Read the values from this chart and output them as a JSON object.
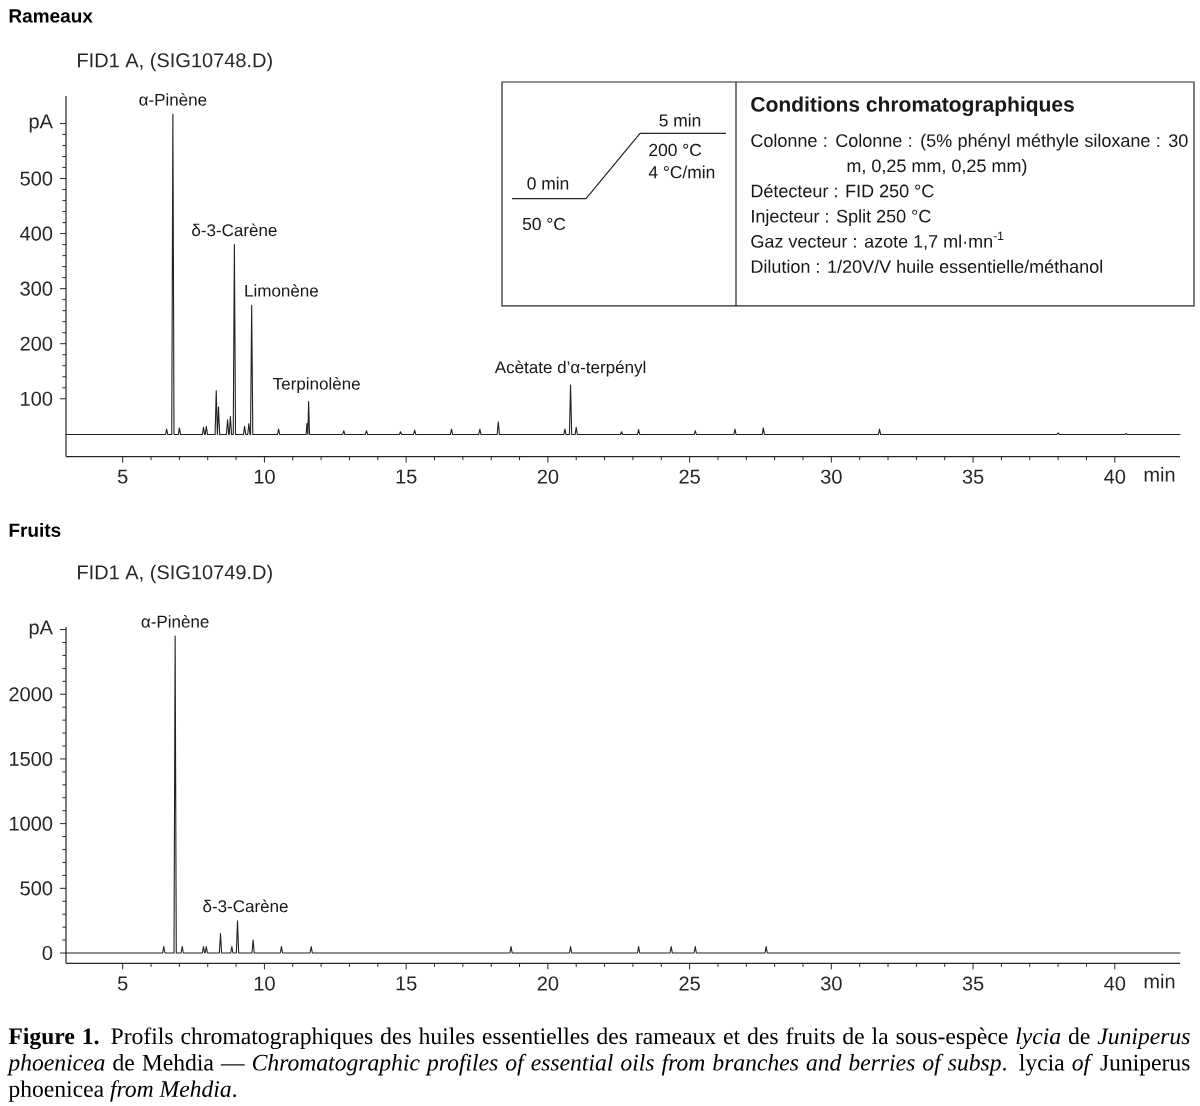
{
  "chart_data": [
    {
      "type": "line",
      "title": "Rameaux",
      "subtitle": "FID1 A, (SIG10748.D)",
      "xlabel": "min",
      "x": [
        3,
        6.51,
        6.55,
        6.59,
        6.73,
        6.77,
        6.81,
        6.96,
        7.0,
        7.04,
        7.81,
        7.85,
        7.89,
        7.91,
        7.95,
        7.99,
        8.26,
        8.3,
        8.34,
        8.34,
        8.38,
        8.42,
        8.66,
        8.7,
        8.74,
        8.76,
        8.8,
        8.84,
        8.9,
        8.94,
        8.98,
        9.26,
        9.3,
        9.34,
        9.41,
        9.45,
        9.49,
        9.51,
        9.55,
        9.59,
        10.46,
        10.5,
        10.54,
        11.47,
        11.5,
        11.53,
        11.53,
        11.56,
        11.59,
        12.76,
        12.8,
        12.84,
        13.56,
        13.6,
        13.64,
        14.76,
        14.8,
        14.84,
        15.26,
        15.3,
        15.34,
        16.56,
        16.6,
        16.64,
        17.56,
        17.6,
        17.64,
        18.21,
        18.25,
        18.29,
        20.56,
        20.6,
        20.64,
        20.76,
        20.8,
        20.84,
        20.96,
        21.0,
        21.04,
        22.56,
        22.6,
        22.64,
        23.16,
        23.2,
        23.24,
        25.16,
        25.2,
        25.24,
        26.56,
        26.6,
        26.64,
        27.56,
        27.6,
        27.64,
        31.66,
        31.7,
        31.74,
        37.96,
        38.0,
        38.04,
        40.36,
        40.4,
        40.44,
        42.3
      ],
      "values": [
        35,
        35,
        45,
        35,
        35,
        617,
        35,
        35,
        47,
        35,
        35,
        48,
        35,
        35,
        50,
        35,
        35,
        115,
        35,
        35,
        85,
        35,
        35,
        62,
        35,
        35,
        68,
        35,
        35,
        380,
        35,
        35,
        50,
        35,
        35,
        55,
        35,
        35,
        270,
        35,
        35,
        45,
        35,
        35,
        55,
        35,
        35,
        95,
        35,
        35,
        42,
        35,
        35,
        42,
        35,
        35,
        40,
        35,
        35,
        43,
        35,
        35,
        45,
        35,
        35,
        45,
        35,
        35,
        58,
        35,
        35,
        45,
        35,
        35,
        125,
        35,
        35,
        48,
        35,
        35,
        40,
        35,
        35,
        44,
        35,
        35,
        42,
        35,
        35,
        45,
        35,
        35,
        47,
        35,
        35,
        45,
        35,
        35,
        38,
        35,
        35,
        37,
        35,
        35
      ],
      "color": "#222222",
      "xlim": [
        3,
        42.3
      ],
      "ylim": [
        -5,
        650
      ],
      "xticks": [
        5,
        10,
        15,
        20,
        25,
        30,
        35,
        40
      ],
      "yticks": [
        100,
        200,
        300,
        400,
        500,
        {
          "value": 600,
          "label": "pA"
        }
      ],
      "annotations": [
        {
          "text": "α-Pinène",
          "x": 6.77,
          "y": 617
        },
        {
          "text": "δ-3-Carène",
          "x": 8.94,
          "y": 380
        },
        {
          "text": "Limonène",
          "x": 9.55,
          "y": 270
        },
        {
          "text": "Terpinolène",
          "x": 11.56,
          "y": 95
        },
        {
          "text": "Acètate d’α-terpényl",
          "x": 20.8,
          "y": 125
        },
        "0 min",
        "50 °C",
        "5 min",
        "200 °C",
        "4 °C/min",
        "Conditions chromatographiques",
        "Colonne : Colonne : (5% phényl méthyle siloxane : 30 m, 0,25 mm, 0,25 mm)",
        "Détecteur : FID 250 °C",
        "Injecteur : Split 250 °C",
        "Gaz vecteur : azote 1,7 ml·mn$^{-1}$",
        "Dilution : 1/20V/V huile essentielle/méthanol"
      ]
    },
    {
      "type": "line",
      "title": "Fruits",
      "subtitle": "FID1 A, (SIG10749.D)",
      "xlabel": "min",
      "x": [
        3,
        6.41,
        6.45,
        6.49,
        6.81,
        6.85,
        6.89,
        7.06,
        7.1,
        7.14,
        7.81,
        7.85,
        7.89,
        7.91,
        7.95,
        7.99,
        8.41,
        8.45,
        8.49,
        8.81,
        8.85,
        8.89,
        9.01,
        9.05,
        9.09,
        9.56,
        9.6,
        9.64,
        10.56,
        10.6,
        10.64,
        11.61,
        11.65,
        11.69,
        18.66,
        18.7,
        18.74,
        20.76,
        20.8,
        20.84,
        23.16,
        23.2,
        23.24,
        24.31,
        24.35,
        24.39,
        25.16,
        25.2,
        25.24,
        27.66,
        27.7,
        27.74,
        42.3
      ],
      "values": [
        0,
        0,
        50,
        0,
        0,
        2450,
        0,
        0,
        50,
        0,
        0,
        50,
        0,
        0,
        50,
        0,
        0,
        150,
        0,
        0,
        50,
        0,
        0,
        250,
        0,
        0,
        100,
        0,
        0,
        50,
        0,
        0,
        50,
        0,
        0,
        50,
        0,
        0,
        50,
        0,
        0,
        50,
        0,
        0,
        50,
        0,
        0,
        50,
        0,
        0,
        50,
        0,
        0
      ],
      "color": "#222222",
      "xlim": [
        3,
        42.3
      ],
      "ylim": [
        -80,
        2520
      ],
      "xticks": [
        5,
        10,
        15,
        20,
        25,
        30,
        35,
        40
      ],
      "yticks": [
        0,
        500,
        1000,
        1500,
        2000,
        {
          "value": 2500,
          "label": "pA"
        }
      ],
      "annotations": [
        {
          "text": "α-Pinène",
          "x": 6.85,
          "y": 2450
        },
        {
          "text": "δ-3-Carène",
          "x": 9.05,
          "y": 250
        },
        "**Figure 1.** Profils chromatographiques des huiles essentielles des rameaux et des fruits de la sous-espèce *lycia* de *Juniperus phoenicea* de Mehdia — *Chromatographic profiles of essential oils from branches and berries of subsp*. lycia *of* Juniperus phoenicea *from Mehdia*."
      ]
    }
  ]
}
